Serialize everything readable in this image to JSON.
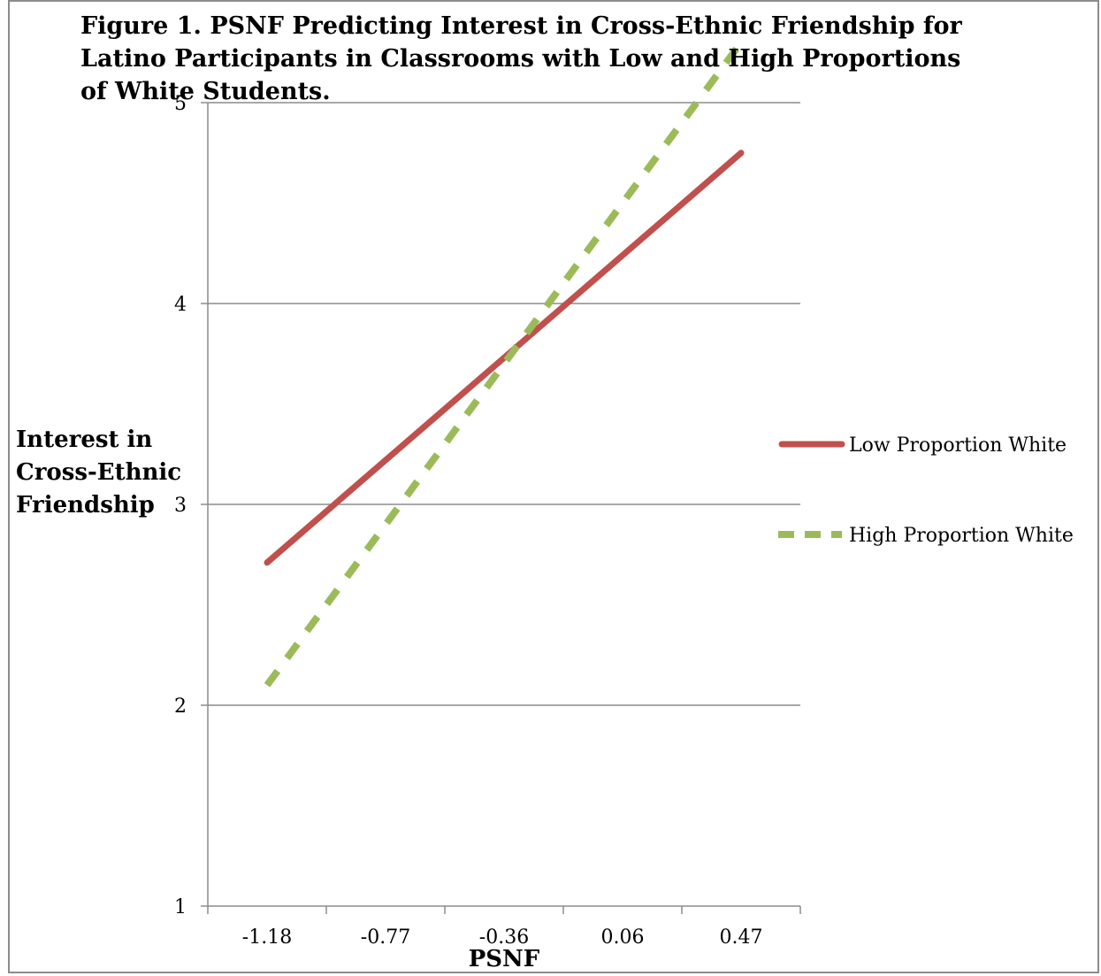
{
  "chart_data": {
    "type": "line",
    "title": "Figure 1. PSNF Predicting Interest in Cross-Ethnic Friendship for Latino Participants in Classrooms with Low and High Proportions of White Students.",
    "title_lines": [
      "Figure 1. PSNF Predicting Interest in Cross-Ethnic Friendship for",
      "Latino Participants in Classrooms with Low and High Proportions",
      "of White Students."
    ],
    "xlabel": "PSNF",
    "ylabel": "Interest in Cross-Ethnic Friendship",
    "ylabel_lines": [
      "Interest in",
      "Cross-Ethnic",
      "Friendship"
    ],
    "categories": [
      "-1.18",
      "-0.77",
      "-0.36",
      "0.06",
      "0.47"
    ],
    "ylim": [
      1,
      5
    ],
    "yticks": [
      "1",
      "2",
      "3",
      "4",
      "5"
    ],
    "grid": "horizontal",
    "legend_position": "right",
    "series": [
      {
        "name": "Low Proportion White",
        "color": "#c0504d",
        "style": "solid",
        "x": [
          -1.18,
          0.47
        ],
        "y": [
          2.71,
          4.75
        ]
      },
      {
        "name": "High Proportion White",
        "color": "#9bbb59",
        "style": "dashed",
        "x": [
          -1.18,
          0.47
        ],
        "y": [
          2.1,
          5.3
        ]
      }
    ]
  }
}
